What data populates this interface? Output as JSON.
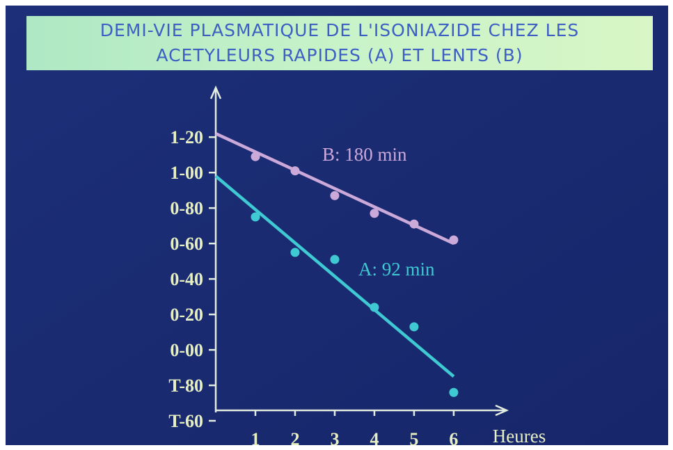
{
  "chart_data": {
    "type": "scatter",
    "title": [
      "DEMI-VIE PLASMATIQUE DE L'ISONIAZIDE CHEZ LES",
      "ACETYLEURS RAPIDES (A) ET LENTS (B)"
    ],
    "x_label": "Heures",
    "xlim": [
      0,
      7.3
    ],
    "xticks": [
      1,
      2,
      3,
      4,
      5,
      6
    ],
    "ylim": [
      -0.4,
      1.44
    ],
    "yticks": [
      {
        "value": 1.2,
        "label": "1-20"
      },
      {
        "value": 1.0,
        "label": "1-00"
      },
      {
        "value": 0.8,
        "label": "0-80"
      },
      {
        "value": 0.6,
        "label": "0-60"
      },
      {
        "value": 0.4,
        "label": "0-40"
      },
      {
        "value": 0.2,
        "label": "0-20"
      },
      {
        "value": 0.0,
        "label": "0-00"
      },
      {
        "value": -0.2,
        "label": "T-80"
      },
      {
        "value": -0.4,
        "label": "T-60"
      }
    ],
    "series": [
      {
        "name": "B: 180 min",
        "color": "#cba9d9",
        "x": [
          1,
          2,
          3,
          4,
          5,
          6
        ],
        "values": [
          1.09,
          1.01,
          0.87,
          0.77,
          0.71,
          0.62
        ],
        "line_x": [
          0,
          6
        ],
        "line_values": [
          1.22,
          0.6
        ]
      },
      {
        "name": "A: 92 min",
        "color": "#3fc9d2",
        "x": [
          1,
          2,
          3,
          4,
          5,
          6
        ],
        "values": [
          0.75,
          0.55,
          0.51,
          0.24,
          0.13,
          -0.24
        ],
        "line_x": [
          0,
          6
        ],
        "line_values": [
          0.98,
          -0.15
        ]
      }
    ]
  }
}
